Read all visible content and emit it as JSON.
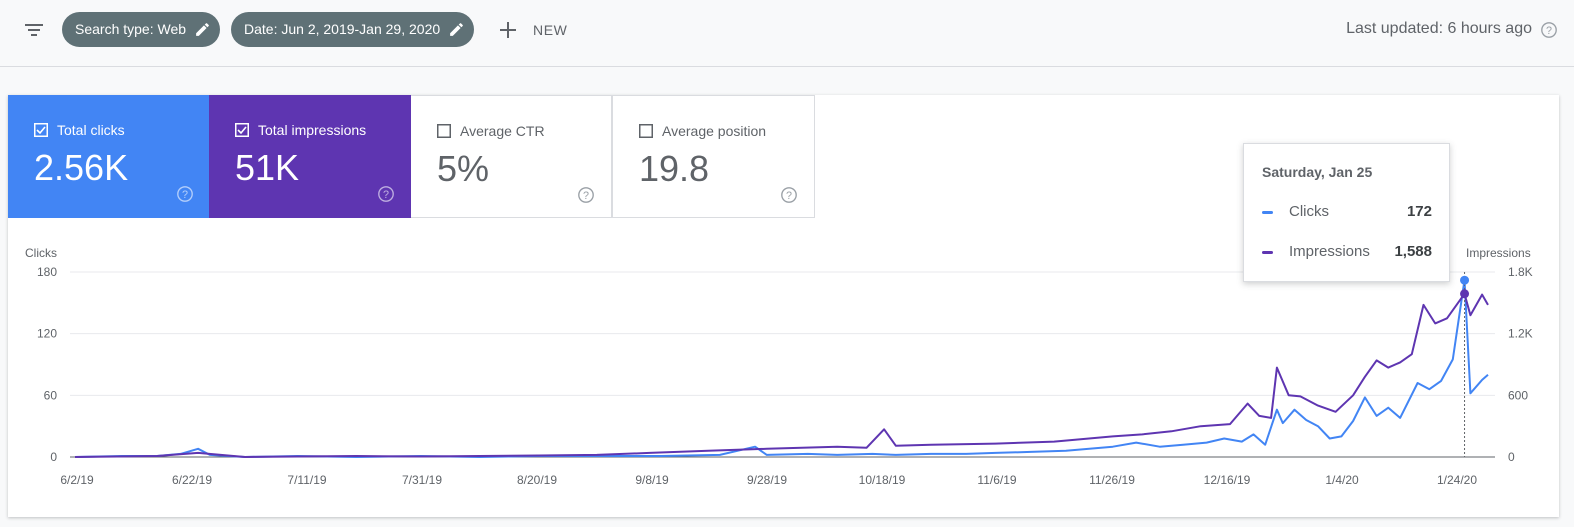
{
  "toolbar": {
    "chips": [
      {
        "label": "Search type: Web"
      },
      {
        "label": "Date: Jun 2, 2019-Jan 29, 2020"
      }
    ],
    "new_label": "NEW",
    "last_updated": "Last updated: 6 hours ago"
  },
  "metrics": [
    {
      "label": "Total clicks",
      "value": "2.56K",
      "checked": true,
      "color": "#4285f4"
    },
    {
      "label": "Total impressions",
      "value": "51K",
      "checked": true,
      "color": "#5e35b1"
    },
    {
      "label": "Average CTR",
      "value": "5%",
      "checked": false
    },
    {
      "label": "Average position",
      "value": "19.8",
      "checked": false
    }
  ],
  "tooltip": {
    "date": "Saturday, Jan 25",
    "rows": [
      {
        "label": "Clicks",
        "value": "172",
        "color": "#4285f4"
      },
      {
        "label": "Impressions",
        "value": "1,588",
        "color": "#5e35b1"
      }
    ]
  },
  "chart_data": {
    "type": "line",
    "ylabel_left": "Clicks",
    "ylabel_right": "Impressions",
    "ylim_left": [
      0,
      180
    ],
    "ylim_right": [
      0,
      1800
    ],
    "yticks_left": [
      "0",
      "60",
      "120",
      "180"
    ],
    "yticks_right": [
      "0",
      "600",
      "1.2K",
      "1.8K"
    ],
    "x_ticks": [
      "6/2/19",
      "6/22/19",
      "7/11/19",
      "7/31/19",
      "8/20/19",
      "9/8/19",
      "9/28/19",
      "10/18/19",
      "11/6/19",
      "11/26/19",
      "12/16/19",
      "1/4/20",
      "1/24/20"
    ],
    "x_range": [
      "2019-06-02",
      "2020-01-29"
    ],
    "highlight_date": "2020-01-25",
    "series": [
      {
        "name": "Clicks",
        "color": "#4285f4",
        "axis": "left",
        "points": [
          [
            "2019-06-02",
            0
          ],
          [
            "2019-06-10",
            1
          ],
          [
            "2019-06-16",
            1
          ],
          [
            "2019-06-20",
            3
          ],
          [
            "2019-06-23",
            8
          ],
          [
            "2019-06-25",
            2
          ],
          [
            "2019-07-01",
            0
          ],
          [
            "2019-07-10",
            1
          ],
          [
            "2019-07-20",
            0
          ],
          [
            "2019-07-31",
            1
          ],
          [
            "2019-08-10",
            0
          ],
          [
            "2019-08-20",
            1
          ],
          [
            "2019-08-30",
            1
          ],
          [
            "2019-09-05",
            1
          ],
          [
            "2019-09-10",
            1
          ],
          [
            "2019-09-20",
            2
          ],
          [
            "2019-09-26",
            10
          ],
          [
            "2019-09-28",
            2
          ],
          [
            "2019-10-05",
            3
          ],
          [
            "2019-10-10",
            2
          ],
          [
            "2019-10-16",
            3
          ],
          [
            "2019-10-20",
            2
          ],
          [
            "2019-10-26",
            3
          ],
          [
            "2019-11-01",
            3
          ],
          [
            "2019-11-06",
            4
          ],
          [
            "2019-11-12",
            5
          ],
          [
            "2019-11-18",
            6
          ],
          [
            "2019-11-22",
            8
          ],
          [
            "2019-11-26",
            10
          ],
          [
            "2019-11-30",
            14
          ],
          [
            "2019-12-04",
            10
          ],
          [
            "2019-12-08",
            12
          ],
          [
            "2019-12-12",
            14
          ],
          [
            "2019-12-15",
            18
          ],
          [
            "2019-12-18",
            15
          ],
          [
            "2019-12-20",
            22
          ],
          [
            "2019-12-22",
            12
          ],
          [
            "2019-12-24",
            46
          ],
          [
            "2019-12-25",
            33
          ],
          [
            "2019-12-27",
            46
          ],
          [
            "2019-12-29",
            36
          ],
          [
            "2019-12-31",
            30
          ],
          [
            "2020-01-02",
            18
          ],
          [
            "2020-01-04",
            20
          ],
          [
            "2020-01-06",
            35
          ],
          [
            "2020-01-08",
            58
          ],
          [
            "2020-01-10",
            40
          ],
          [
            "2020-01-12",
            48
          ],
          [
            "2020-01-14",
            38
          ],
          [
            "2020-01-17",
            72
          ],
          [
            "2020-01-19",
            66
          ],
          [
            "2020-01-21",
            74
          ],
          [
            "2020-01-23",
            95
          ],
          [
            "2020-01-25",
            172
          ],
          [
            "2020-01-26",
            62
          ],
          [
            "2020-01-28",
            75
          ],
          [
            "2020-01-29",
            80
          ]
        ]
      },
      {
        "name": "Impressions",
        "color": "#5e35b1",
        "axis": "right",
        "points": [
          [
            "2019-06-02",
            0
          ],
          [
            "2019-06-16",
            10
          ],
          [
            "2019-06-23",
            40
          ],
          [
            "2019-07-01",
            0
          ],
          [
            "2019-07-20",
            10
          ],
          [
            "2019-07-31",
            5
          ],
          [
            "2019-08-20",
            15
          ],
          [
            "2019-08-30",
            20
          ],
          [
            "2019-09-08",
            40
          ],
          [
            "2019-09-18",
            60
          ],
          [
            "2019-09-28",
            80
          ],
          [
            "2019-10-10",
            100
          ],
          [
            "2019-10-15",
            90
          ],
          [
            "2019-10-18",
            270
          ],
          [
            "2019-10-20",
            110
          ],
          [
            "2019-10-26",
            120
          ],
          [
            "2019-11-06",
            130
          ],
          [
            "2019-11-16",
            150
          ],
          [
            "2019-11-26",
            200
          ],
          [
            "2019-12-01",
            220
          ],
          [
            "2019-12-06",
            250
          ],
          [
            "2019-12-11",
            300
          ],
          [
            "2019-12-16",
            320
          ],
          [
            "2019-12-19",
            520
          ],
          [
            "2019-12-21",
            400
          ],
          [
            "2019-12-23",
            380
          ],
          [
            "2019-12-24",
            870
          ],
          [
            "2019-12-26",
            600
          ],
          [
            "2019-12-28",
            590
          ],
          [
            "2019-12-31",
            500
          ],
          [
            "2020-01-03",
            440
          ],
          [
            "2020-01-06",
            600
          ],
          [
            "2020-01-08",
            780
          ],
          [
            "2020-01-10",
            940
          ],
          [
            "2020-01-12",
            870
          ],
          [
            "2020-01-14",
            920
          ],
          [
            "2020-01-16",
            1000
          ],
          [
            "2020-01-18",
            1480
          ],
          [
            "2020-01-20",
            1300
          ],
          [
            "2020-01-22",
            1350
          ],
          [
            "2020-01-25",
            1588
          ],
          [
            "2020-01-26",
            1380
          ],
          [
            "2020-01-28",
            1580
          ],
          [
            "2020-01-29",
            1480
          ]
        ]
      }
    ]
  }
}
